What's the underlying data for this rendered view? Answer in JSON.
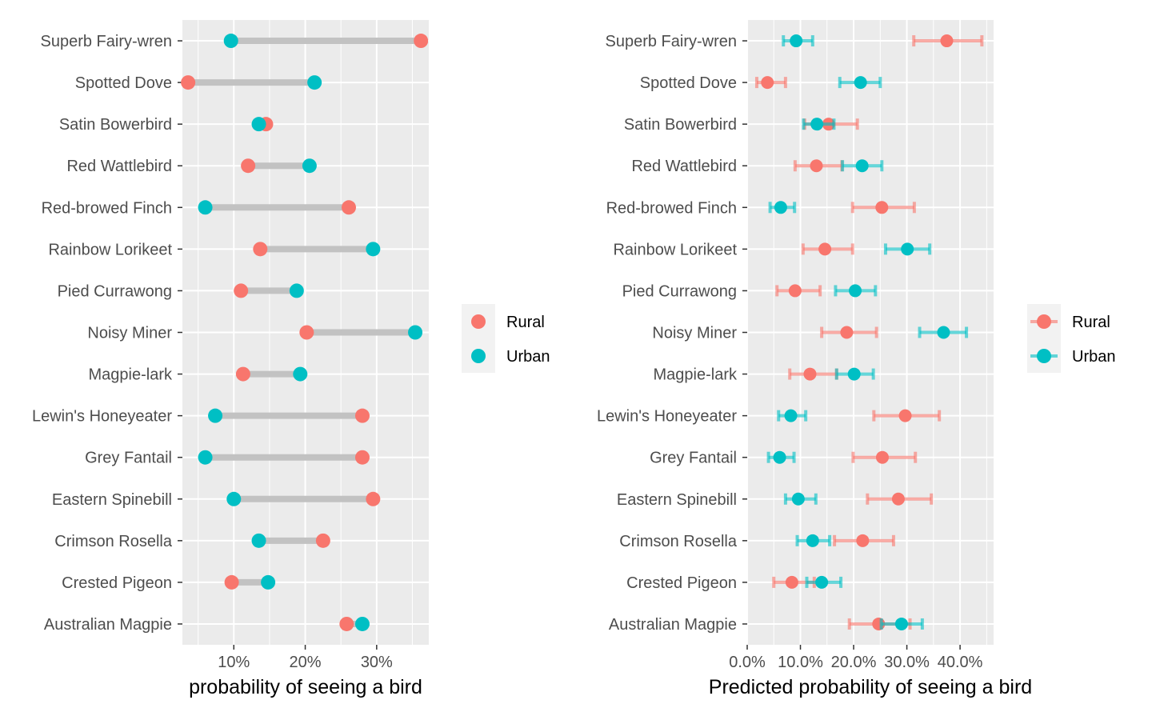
{
  "chart_data": [
    {
      "type": "dumbbell",
      "xlabel": "probability of seeing a bird",
      "ylabel": "",
      "x_unit": "percent",
      "xlim": [
        2.8,
        37.3
      ],
      "xticks": [
        10,
        20,
        30
      ],
      "xtick_labels": [
        "10%",
        "20%",
        "30%"
      ],
      "grid": true,
      "legend_position": "right",
      "categories": [
        "Superb Fairy-wren",
        "Spotted Dove",
        "Satin Bowerbird",
        "Red Wattlebird",
        "Red-browed Finch",
        "Rainbow Lorikeet",
        "Pied Currawong",
        "Noisy Miner",
        "Magpie-lark",
        "Lewin's Honeyeater",
        "Grey Fantail",
        "Eastern Spinebill",
        "Crimson Rosella",
        "Crested Pigeon",
        "Australian Magpie"
      ],
      "series": [
        {
          "name": "Rural",
          "color": "#F8766D",
          "values": [
            36.2,
            3.6,
            14.5,
            12.0,
            26.1,
            13.7,
            11.0,
            20.2,
            11.3,
            28.0,
            28.0,
            29.5,
            22.5,
            9.7,
            25.8
          ]
        },
        {
          "name": "Urban",
          "color": "#00BFC4",
          "values": [
            9.6,
            21.3,
            13.5,
            20.6,
            6.0,
            29.5,
            18.8,
            35.4,
            19.3,
            7.4,
            6.0,
            10.0,
            13.5,
            14.8,
            28.0
          ]
        }
      ]
    },
    {
      "type": "errorbar",
      "xlabel": "Predicted probability of seeing a bird",
      "ylabel": "",
      "x_unit": "percent",
      "xlim": [
        0,
        46.3
      ],
      "xticks": [
        0,
        10,
        20,
        30,
        40
      ],
      "xtick_labels": [
        "0.0%",
        "10.0%",
        "20.0%",
        "30.0%",
        "40.0%"
      ],
      "grid": true,
      "legend_position": "right",
      "categories": [
        "Superb Fairy-wren",
        "Spotted Dove",
        "Satin Bowerbird",
        "Red Wattlebird",
        "Red-browed Finch",
        "Rainbow Lorikeet",
        "Pied Currawong",
        "Noisy Miner",
        "Magpie-lark",
        "Lewin's Honeyeater",
        "Grey Fantail",
        "Eastern Spinebill",
        "Crimson Rosella",
        "Crested Pigeon",
        "Australian Magpie"
      ],
      "series": [
        {
          "name": "Rural",
          "color": "#F8766D",
          "values": [
            37.5,
            3.8,
            15.3,
            13.0,
            25.3,
            14.6,
            9.0,
            18.7,
            11.8,
            29.7,
            25.4,
            28.4,
            21.7,
            8.4,
            24.7
          ],
          "lower": [
            31.3,
            1.8,
            10.8,
            9.0,
            19.8,
            10.5,
            5.6,
            14.0,
            8.0,
            23.8,
            19.9,
            22.6,
            16.4,
            5.0,
            19.2
          ],
          "upper": [
            44.1,
            7.2,
            20.7,
            17.8,
            31.4,
            19.8,
            13.7,
            24.3,
            16.8,
            36.1,
            31.6,
            34.6,
            27.5,
            12.6,
            30.6
          ]
        },
        {
          "name": "Urban",
          "color": "#00BFC4",
          "values": [
            9.2,
            21.3,
            13.1,
            21.6,
            6.3,
            30.1,
            20.3,
            36.9,
            20.1,
            8.2,
            6.1,
            9.6,
            12.3,
            14.0,
            29.0
          ],
          "lower": [
            6.8,
            17.4,
            10.6,
            17.9,
            4.3,
            26.0,
            16.6,
            32.4,
            16.8,
            5.9,
            4.0,
            7.2,
            9.4,
            11.2,
            25.2
          ],
          "upper": [
            12.3,
            25.0,
            16.3,
            25.3,
            8.9,
            34.3,
            24.1,
            41.2,
            23.7,
            11.0,
            8.8,
            12.9,
            15.5,
            17.6,
            32.9
          ]
        }
      ]
    }
  ]
}
